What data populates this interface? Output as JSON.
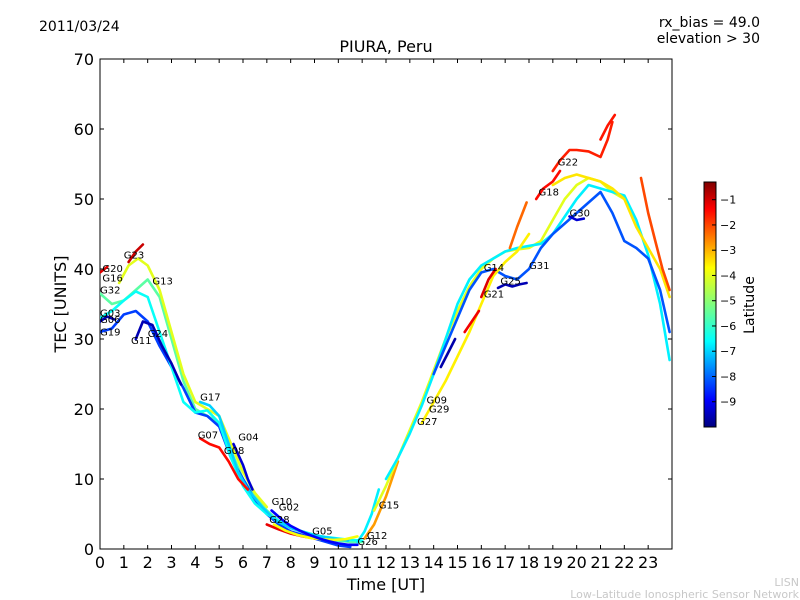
{
  "header": {
    "date": "2011/03/24",
    "rx_bias": "rx_bias = 49.0",
    "elevation": "elevation > 30"
  },
  "footer": {
    "line1": "LISN",
    "line2": "Low-Latitude Ionospheric Sensor Network"
  },
  "chart_data": {
    "type": "line",
    "title": "PIURA, Peru",
    "xlabel": "Time [UT]",
    "ylabel": "TEC [UNITS]",
    "xlim": [
      0,
      24
    ],
    "ylim": [
      0,
      70
    ],
    "xticks": [
      "0",
      "1",
      "2",
      "3",
      "4",
      "5",
      "6",
      "7",
      "8",
      "9",
      "10",
      "11",
      "12",
      "13",
      "14",
      "15",
      "16",
      "17",
      "18",
      "19",
      "20",
      "21",
      "22",
      "23"
    ],
    "yticks": [
      "0",
      "10",
      "20",
      "30",
      "40",
      "50",
      "60",
      "70"
    ],
    "grid": false,
    "colorbar": {
      "label": "Latitude",
      "range": [
        -10,
        -0.3
      ],
      "ticks": [
        "-1",
        "-2",
        "-3",
        "-4",
        "-5",
        "-6",
        "-7",
        "-8",
        "-9"
      ],
      "colormap": [
        "#00007f",
        "#0000ff",
        "#007fff",
        "#00ffff",
        "#7fff7f",
        "#ffff00",
        "#ff7f00",
        "#ff0000",
        "#7f0000"
      ]
    },
    "satellite_labels": [
      {
        "name": "G20",
        "x": 0.1,
        "y": 39.6
      },
      {
        "name": "G16",
        "x": 0.1,
        "y": 38.2
      },
      {
        "name": "G23",
        "x": 1.0,
        "y": 41.5
      },
      {
        "name": "G13",
        "x": 2.2,
        "y": 37.8
      },
      {
        "name": "G32",
        "x": 0.0,
        "y": 36.5
      },
      {
        "name": "G03",
        "x": 0.0,
        "y": 33.2
      },
      {
        "name": "G06",
        "x": 0.0,
        "y": 32.3
      },
      {
        "name": "G19",
        "x": 0.0,
        "y": 30.5
      },
      {
        "name": "G24",
        "x": 2.0,
        "y": 30.3
      },
      {
        "name": "G11",
        "x": 1.3,
        "y": 29.3
      },
      {
        "name": "G17",
        "x": 4.2,
        "y": 21.2
      },
      {
        "name": "G07",
        "x": 4.1,
        "y": 15.8
      },
      {
        "name": "G04",
        "x": 5.8,
        "y": 15.5
      },
      {
        "name": "G08",
        "x": 5.2,
        "y": 13.6
      },
      {
        "name": "G10",
        "x": 7.2,
        "y": 6.3
      },
      {
        "name": "G02",
        "x": 7.5,
        "y": 5.5
      },
      {
        "name": "G28",
        "x": 7.1,
        "y": 3.7
      },
      {
        "name": "G05",
        "x": 8.9,
        "y": 2.1
      },
      {
        "name": "G12",
        "x": 11.2,
        "y": 1.4
      },
      {
        "name": "G26",
        "x": 10.8,
        "y": 0.6
      },
      {
        "name": "G15",
        "x": 11.7,
        "y": 5.8
      },
      {
        "name": "G27",
        "x": 13.3,
        "y": 17.7
      },
      {
        "name": "G09",
        "x": 13.7,
        "y": 20.8
      },
      {
        "name": "G29",
        "x": 13.8,
        "y": 19.5
      },
      {
        "name": "G14",
        "x": 16.1,
        "y": 39.7
      },
      {
        "name": "G31",
        "x": 18.0,
        "y": 40.0
      },
      {
        "name": "G25",
        "x": 16.8,
        "y": 37.8
      },
      {
        "name": "G21",
        "x": 16.1,
        "y": 35.9
      },
      {
        "name": "G18",
        "x": 18.4,
        "y": 50.5
      },
      {
        "name": "G22",
        "x": 19.2,
        "y": 54.8
      },
      {
        "name": "G30",
        "x": 19.7,
        "y": 47.5
      }
    ],
    "series": [
      {
        "lat": -5.5,
        "x": [
          0,
          0.5,
          1,
          1.5,
          2,
          2.5,
          3,
          3.5,
          4,
          4.5,
          5,
          5.5,
          6,
          6.5,
          7,
          7.5,
          8,
          8.5,
          9,
          9.5,
          10,
          10.5,
          11
        ],
        "y": [
          36.5,
          35,
          35.5,
          37,
          38.5,
          36,
          30,
          24,
          20,
          19,
          18,
          14,
          10,
          7.5,
          5.5,
          4,
          3,
          2.5,
          2,
          1.5,
          1.2,
          1,
          1
        ]
      },
      {
        "lat": -4.2,
        "x": [
          0.8,
          1.2,
          1.6,
          2,
          2.5,
          3,
          3.5,
          4,
          4.5,
          5,
          5.5,
          6,
          6.5,
          7
        ],
        "y": [
          38,
          40.5,
          41.5,
          40.5,
          37,
          31,
          25,
          21,
          20,
          19,
          15,
          11,
          8,
          6
        ]
      },
      {
        "lat": -8.2,
        "x": [
          0,
          0.5,
          1,
          1.5,
          2,
          2.5,
          3,
          3.5,
          4,
          4.5,
          5,
          5.5,
          6,
          6.5,
          7,
          7.5,
          8,
          8.5,
          9,
          9.5,
          10,
          10.5
        ],
        "y": [
          31,
          31.5,
          33.5,
          34,
          32.5,
          29,
          26,
          23,
          19.5,
          19,
          17.5,
          13,
          10,
          7,
          5,
          3.5,
          2.5,
          2,
          1.5,
          1,
          0.5,
          0.3
        ]
      },
      {
        "lat": -6.3,
        "x": [
          0,
          0.5,
          1,
          1.5,
          2,
          2.5,
          3,
          3.5,
          4,
          4.5,
          5,
          5.5,
          6,
          6.5,
          7,
          7.5,
          8,
          8.5,
          9,
          9.5,
          10,
          10.5,
          11
        ],
        "y": [
          33,
          34,
          35.5,
          36.8,
          36,
          31,
          26,
          21,
          19.5,
          19.8,
          18,
          13,
          9,
          6.5,
          5,
          4,
          3,
          2.5,
          2,
          1.7,
          1.5,
          1.3,
          1.2
        ]
      },
      {
        "lat": -6.8,
        "x": [
          4.2,
          4.6,
          5,
          5.4,
          5.8,
          6.2,
          6.8,
          7.4,
          8,
          8.6,
          9.2,
          9.8,
          10.4
        ],
        "y": [
          21,
          20.5,
          19,
          15,
          11,
          8.5,
          6,
          4,
          3,
          2.3,
          1.8,
          1.5,
          1.2
        ]
      },
      {
        "lat": -1.6,
        "x": [
          4.2,
          4.6,
          5,
          5.4,
          5.8,
          6.2
        ],
        "y": [
          15.8,
          15,
          14.5,
          12.5,
          10,
          8.5
        ]
      },
      {
        "lat": -9.2,
        "x": [
          5.6,
          5.8,
          6,
          6.2,
          6.4
        ],
        "y": [
          15,
          13.5,
          12,
          10,
          8.5
        ]
      },
      {
        "lat": -9.5,
        "x": [
          1.5,
          1.8,
          2.2,
          2.6,
          3,
          3.4
        ],
        "y": [
          30,
          32.5,
          32,
          29,
          26.5,
          23.5
        ]
      },
      {
        "lat": -1.2,
        "x": [
          0,
          0.3
        ],
        "y": [
          39.5,
          40.3
        ]
      },
      {
        "lat": -1.0,
        "x": [
          1.2,
          1.5,
          1.8
        ],
        "y": [
          41,
          42.5,
          43.5
        ]
      },
      {
        "lat": -1.3,
        "x": [
          7.0,
          7.5,
          8,
          8.5,
          9
        ],
        "y": [
          3.5,
          2.8,
          2.2,
          1.8,
          1.5
        ]
      },
      {
        "lat": -4.0,
        "x": [
          7.3,
          7.8,
          8.3,
          8.8,
          9.3,
          9.8,
          10.3,
          10.8
        ],
        "y": [
          3.5,
          2.6,
          2,
          1.6,
          1.4,
          1.3,
          1.4,
          1.8
        ]
      },
      {
        "lat": -8.8,
        "x": [
          7.2,
          7.6,
          8,
          8.4,
          8.8,
          9.2,
          9.6,
          10,
          10.4,
          10.8
        ],
        "y": [
          5.5,
          4.3,
          3.3,
          2.6,
          2,
          1.5,
          1.1,
          0.8,
          0.6,
          0.6
        ]
      },
      {
        "lat": -6.5,
        "x": [
          10.8,
          11.1,
          11.4,
          11.7
        ],
        "y": [
          1,
          2.5,
          5,
          8.5
        ]
      },
      {
        "lat": -3.0,
        "x": [
          11.1,
          11.5,
          12,
          12.5
        ],
        "y": [
          1.5,
          3.5,
          7.5,
          12.5
        ]
      },
      {
        "lat": -4.2,
        "x": [
          11.5,
          12,
          12.5,
          13,
          13.5,
          14,
          14.5,
          15,
          15.5,
          16,
          16.5,
          17,
          17.5,
          18,
          18.5,
          19,
          19.5,
          20,
          20.5,
          21,
          21.5,
          22
        ],
        "y": [
          5.5,
          9,
          13,
          17,
          21,
          25.5,
          30,
          34,
          37.5,
          40,
          41.5,
          42.5,
          42.8,
          43,
          44,
          47,
          50,
          52,
          53,
          52.5,
          51,
          50
        ]
      },
      {
        "lat": -6.5,
        "x": [
          12,
          12.5,
          13,
          13.5,
          14,
          14.5,
          15,
          15.5,
          16,
          16.5,
          17,
          17.5,
          18,
          18.5,
          19,
          19.5,
          20,
          20.5,
          21,
          21.5,
          22,
          22.5,
          23,
          23.5,
          23.9
        ],
        "y": [
          10,
          13,
          16.5,
          20.5,
          25,
          30,
          35,
          38.5,
          40.5,
          41.5,
          42.5,
          43,
          43.3,
          43.6,
          45,
          47.5,
          50,
          52,
          51.5,
          51,
          50.5,
          47,
          42,
          35,
          27
        ]
      },
      {
        "lat": -8.0,
        "x": [
          14,
          14.5,
          15,
          15.5,
          16,
          16.5,
          17,
          17.5,
          18,
          18.5,
          19,
          19.5,
          20,
          20.5,
          21,
          21.5,
          22,
          22.5,
          23,
          23.5,
          23.9
        ],
        "y": [
          25,
          29,
          33,
          37,
          39.5,
          40,
          39,
          38.5,
          40,
          43,
          45,
          46.5,
          48,
          49.5,
          51,
          48,
          44,
          43,
          41.5,
          37,
          31
        ]
      },
      {
        "lat": -3.8,
        "x": [
          13.5,
          14,
          14.5,
          15,
          15.5,
          16,
          16.5,
          17,
          17.5,
          18
        ],
        "y": [
          18,
          21,
          24,
          27.5,
          31,
          35,
          39,
          41,
          42.5,
          45
        ]
      },
      {
        "lat": -1.2,
        "x": [
          16,
          16.3,
          16.6
        ],
        "y": [
          36,
          38.5,
          40
        ]
      },
      {
        "lat": -9.5,
        "x": [
          16.7,
          17,
          17.3,
          17.6,
          17.9
        ],
        "y": [
          37.3,
          37.8,
          37.5,
          37.8,
          38
        ]
      },
      {
        "lat": -2.5,
        "x": [
          17.2,
          17.5,
          17.9
        ],
        "y": [
          43,
          46,
          49.5
        ]
      },
      {
        "lat": -1.6,
        "x": [
          18.3,
          18.6,
          19,
          19.3
        ],
        "y": [
          50,
          51.5,
          52.5,
          54
        ]
      },
      {
        "lat": -1.8,
        "x": [
          19,
          19.3,
          19.7,
          20,
          20.5,
          21,
          21.3,
          21.5
        ],
        "y": [
          54,
          55.5,
          57,
          57,
          56.8,
          56,
          58.5,
          61
        ]
      },
      {
        "lat": -3.7,
        "x": [
          19,
          19.5,
          20,
          20.5,
          21,
          21.5,
          22,
          22.5,
          23,
          23.5,
          23.9
        ],
        "y": [
          52,
          53,
          53.5,
          53,
          52.5,
          51.5,
          50,
          46,
          43,
          40,
          36
        ]
      },
      {
        "lat": -9.2,
        "x": [
          19.7,
          20,
          20.3
        ],
        "y": [
          47.5,
          47,
          47.2
        ]
      },
      {
        "lat": -1.7,
        "x": [
          21,
          21.3,
          21.6
        ],
        "y": [
          58.5,
          60.5,
          62
        ]
      },
      {
        "lat": -2.2,
        "x": [
          22.7,
          23,
          23.3,
          23.6,
          23.9
        ],
        "y": [
          53,
          48,
          44,
          40,
          37
        ]
      },
      {
        "lat": -9.5,
        "x": [
          0,
          0.3,
          0.6
        ],
        "y": [
          32.5,
          33.2,
          32.8
        ]
      },
      {
        "lat": -9.6,
        "x": [
          14.3,
          14.6,
          14.9
        ],
        "y": [
          26,
          28,
          30
        ]
      },
      {
        "lat": -1.4,
        "x": [
          15.3,
          15.6,
          15.9
        ],
        "y": [
          31,
          32.5,
          34
        ]
      }
    ]
  }
}
